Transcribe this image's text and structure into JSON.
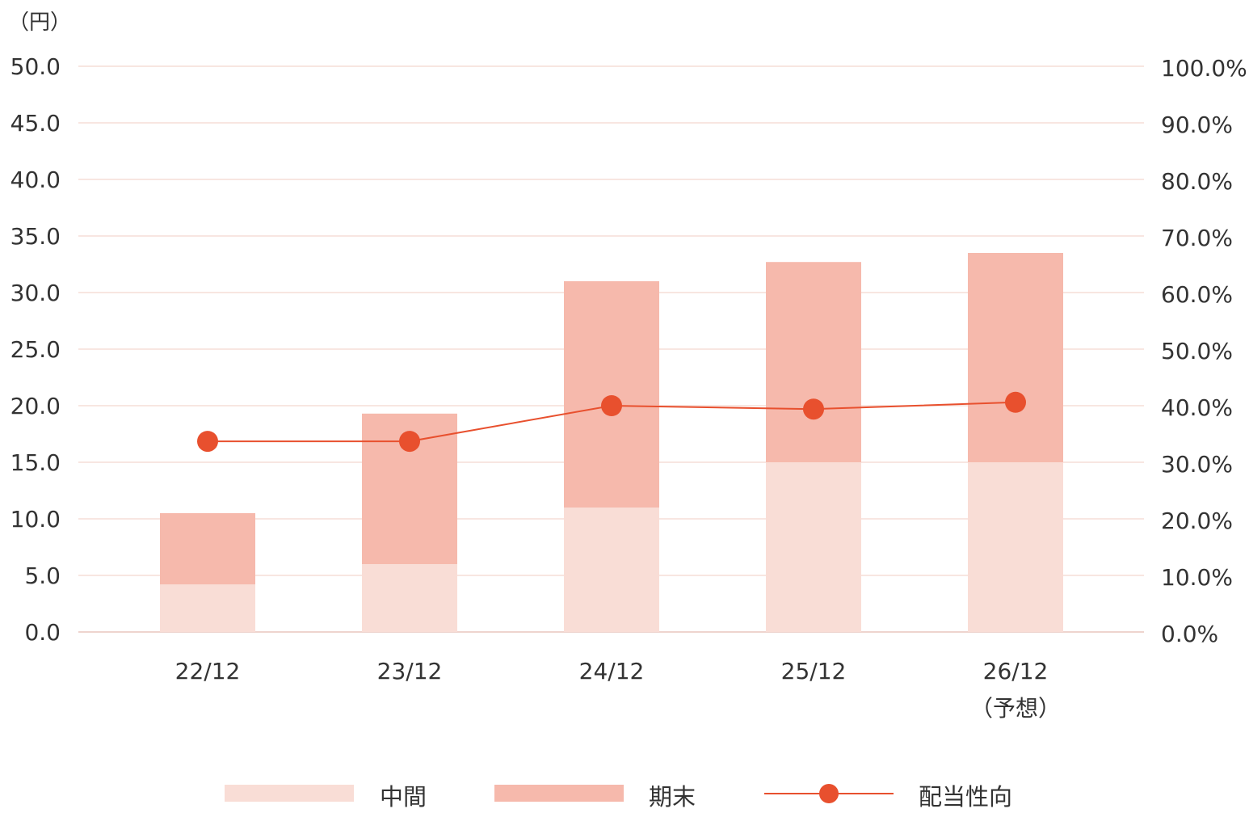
{
  "chart_data": {
    "type": "bar",
    "stacked": true,
    "left_axis_unit": "（円）",
    "categories": [
      "22/12",
      "23/12",
      "24/12",
      "25/12",
      "26/12"
    ],
    "category_notes": [
      "",
      "",
      "",
      "",
      "（予想）"
    ],
    "left_ticks": [
      "0.0",
      "5.0",
      "10.0",
      "15.0",
      "20.0",
      "25.0",
      "30.0",
      "35.0",
      "40.0",
      "45.0",
      "50.0"
    ],
    "right_ticks": [
      "0.0%",
      "10.0%",
      "20.0%",
      "30.0%",
      "40.0%",
      "50.0%",
      "60.0%",
      "70.0%",
      "80.0%",
      "90.0%",
      "100.0%"
    ],
    "ylim": [
      0,
      50
    ],
    "y2lim": [
      0,
      100
    ],
    "grid": true,
    "legend_position": "bottom",
    "series": [
      {
        "name": "中間",
        "type": "bar",
        "axis": "left",
        "color": "#f9ddd6",
        "values": [
          4.2,
          6.0,
          11.0,
          15.0,
          15.0
        ]
      },
      {
        "name": "期末",
        "type": "bar",
        "axis": "left",
        "color": "#f6b9ac",
        "values": [
          6.3,
          13.3,
          20.0,
          17.7,
          18.5
        ]
      },
      {
        "name": "配当性向",
        "type": "line",
        "axis": "right",
        "color": "#e8502e",
        "values": [
          33.7,
          33.7,
          40.0,
          39.4,
          40.6
        ]
      }
    ]
  }
}
